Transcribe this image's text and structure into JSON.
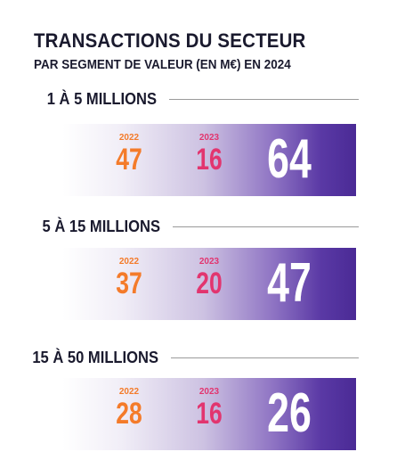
{
  "header": {
    "title": "TRANSACTIONS DU SECTEUR",
    "subtitle": "PAR SEGMENT DE VALEUR (EN M€) EN 2024"
  },
  "chart_data": {
    "type": "table",
    "title": "TRANSACTIONS DU SECTEUR",
    "subtitle": "PAR SEGMENT DE VALEUR (EN M€) EN 2024",
    "columns": [
      "2022",
      "2023",
      "2024"
    ],
    "rows": [
      {
        "label": "1 À 5 MILLIONS",
        "v2022": "47",
        "v2023": "16",
        "v2024": "64"
      },
      {
        "label": "5 À 15 MILLIONS",
        "v2022": "37",
        "v2023": "20",
        "v2024": "47"
      },
      {
        "label": "15 À 50 MILLIONS",
        "v2022": "28",
        "v2023": "16",
        "v2024": "26"
      }
    ]
  },
  "colors": {
    "y2022": "#f47b2a",
    "y2023": "#e2356f",
    "band_dark": "#4a2a95",
    "text": "#1a1a2e"
  }
}
